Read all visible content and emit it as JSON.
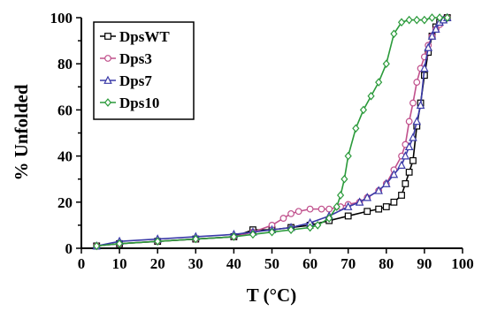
{
  "chart_data": {
    "type": "line",
    "title": "",
    "xlabel": "T (°C)",
    "ylabel": "% Unfolded",
    "xlim": [
      0,
      100
    ],
    "ylim": [
      0,
      100
    ],
    "xticks": [
      "0",
      "10",
      "20",
      "30",
      "40",
      "50",
      "60",
      "70",
      "80",
      "90",
      "100"
    ],
    "yticks": [
      "0",
      "20",
      "40",
      "60",
      "80",
      "100"
    ],
    "grid": false,
    "legend_position": "top-left",
    "series": [
      {
        "name": "DpsWT",
        "color": "#000000",
        "marker": "square",
        "x": [
          4,
          10,
          20,
          30,
          40,
          45,
          50,
          55,
          60,
          65,
          70,
          75,
          78,
          80,
          82,
          84,
          85,
          86,
          87,
          88,
          89,
          90,
          91,
          92,
          93,
          94,
          95,
          96
        ],
        "y": [
          1,
          2,
          3,
          4,
          5,
          8,
          8,
          9,
          10,
          12,
          14,
          16,
          17,
          18,
          20,
          23,
          28,
          33,
          38,
          53,
          63,
          75,
          85,
          92,
          96,
          98,
          99,
          100
        ]
      },
      {
        "name": "Dps3",
        "color": "#c0508c",
        "marker": "circle",
        "x": [
          4,
          10,
          20,
          30,
          40,
          45,
          50,
          53,
          55,
          57,
          60,
          63,
          65,
          68,
          70,
          73,
          75,
          78,
          80,
          82,
          84,
          85,
          86,
          87,
          88,
          89,
          90,
          91,
          92,
          93,
          94,
          95,
          96
        ],
        "y": [
          1,
          2,
          3,
          4,
          5,
          7,
          10,
          13,
          15,
          16,
          17,
          17,
          17,
          18,
          19,
          20,
          22,
          25,
          28,
          34,
          40,
          45,
          55,
          63,
          72,
          78,
          83,
          88,
          92,
          95,
          97,
          99,
          100
        ]
      },
      {
        "name": "Dps7",
        "color": "#3a3aa8",
        "marker": "triangle",
        "x": [
          4,
          10,
          20,
          30,
          40,
          45,
          50,
          55,
          60,
          65,
          70,
          73,
          75,
          78,
          80,
          82,
          84,
          85,
          86,
          87,
          88,
          89,
          90,
          91,
          92,
          93,
          94,
          95,
          96
        ],
        "y": [
          1,
          3,
          4,
          5,
          6,
          7,
          8,
          9,
          11,
          14,
          18,
          20,
          22,
          25,
          28,
          32,
          36,
          40,
          44,
          48,
          55,
          62,
          78,
          87,
          92,
          95,
          98,
          99,
          100
        ]
      },
      {
        "name": "Dps10",
        "color": "#2a9a3a",
        "marker": "diamond",
        "x": [
          4,
          10,
          20,
          30,
          40,
          45,
          50,
          55,
          60,
          62,
          65,
          67,
          68,
          69,
          70,
          72,
          74,
          76,
          78,
          80,
          82,
          84,
          86,
          88,
          90,
          92,
          94,
          96
        ],
        "y": [
          1,
          2,
          3,
          4,
          5,
          6,
          7,
          8,
          9,
          10,
          13,
          18,
          23,
          30,
          40,
          52,
          60,
          66,
          72,
          80,
          93,
          98,
          99,
          99,
          99,
          100,
          100,
          100
        ]
      }
    ]
  }
}
